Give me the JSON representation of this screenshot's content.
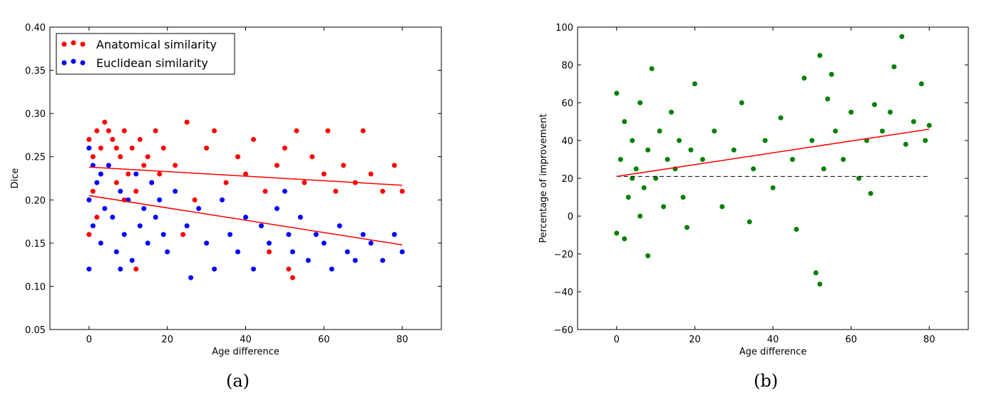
{
  "chart_data": [
    {
      "type": "scatter",
      "panel_label": "(a)",
      "xlabel": "Age difference",
      "ylabel": "Dice",
      "xlim": [
        -10,
        90
      ],
      "ylim": [
        0.05,
        0.4
      ],
      "xticks": [
        0,
        20,
        40,
        60,
        80
      ],
      "yticks": [
        "0.05",
        "0.10",
        "0.15",
        "0.20",
        "0.25",
        "0.30",
        "0.35",
        "0.40"
      ],
      "legend": {
        "placement": "top-left"
      },
      "series": [
        {
          "name": "Anatomical similarity",
          "color": "#ff0000",
          "trend": [
            [
              0,
              0.238
            ],
            [
              80,
              0.217
            ]
          ],
          "points": [
            [
              0,
              0.27
            ],
            [
              1,
              0.25
            ],
            [
              2,
              0.28
            ],
            [
              3,
              0.26
            ],
            [
              4,
              0.29
            ],
            [
              5,
              0.24
            ],
            [
              6,
              0.27
            ],
            [
              7,
              0.22
            ],
            [
              8,
              0.25
            ],
            [
              9,
              0.28
            ],
            [
              10,
              0.23
            ],
            [
              11,
              0.26
            ],
            [
              12,
              0.21
            ],
            [
              13,
              0.27
            ],
            [
              14,
              0.24
            ],
            [
              15,
              0.25
            ],
            [
              16,
              0.22
            ],
            [
              17,
              0.28
            ],
            [
              18,
              0.23
            ],
            [
              19,
              0.26
            ],
            [
              1,
              0.21
            ],
            [
              3,
              0.23
            ],
            [
              5,
              0.28
            ],
            [
              7,
              0.26
            ],
            [
              9,
              0.2
            ],
            [
              0,
              0.16
            ],
            [
              2,
              0.18
            ],
            [
              12,
              0.12
            ],
            [
              22,
              0.24
            ],
            [
              25,
              0.29
            ],
            [
              27,
              0.2
            ],
            [
              30,
              0.26
            ],
            [
              32,
              0.28
            ],
            [
              35,
              0.22
            ],
            [
              38,
              0.25
            ],
            [
              40,
              0.23
            ],
            [
              42,
              0.27
            ],
            [
              45,
              0.21
            ],
            [
              48,
              0.24
            ],
            [
              50,
              0.26
            ],
            [
              51,
              0.12
            ],
            [
              52,
              0.11
            ],
            [
              53,
              0.28
            ],
            [
              55,
              0.22
            ],
            [
              57,
              0.25
            ],
            [
              60,
              0.23
            ],
            [
              61,
              0.28
            ],
            [
              63,
              0.21
            ],
            [
              65,
              0.24
            ],
            [
              68,
              0.22
            ],
            [
              70,
              0.28
            ],
            [
              72,
              0.23
            ],
            [
              75,
              0.21
            ],
            [
              78,
              0.24
            ],
            [
              80,
              0.21
            ],
            [
              46,
              0.14
            ],
            [
              24,
              0.16
            ]
          ]
        },
        {
          "name": "Euclidean similarity",
          "color": "#0000ff",
          "trend": [
            [
              0,
              0.205
            ],
            [
              80,
              0.148
            ]
          ],
          "points": [
            [
              0,
              0.2
            ],
            [
              1,
              0.17
            ],
            [
              2,
              0.22
            ],
            [
              3,
              0.15
            ],
            [
              4,
              0.19
            ],
            [
              5,
              0.24
            ],
            [
              6,
              0.18
            ],
            [
              7,
              0.14
            ],
            [
              8,
              0.21
            ],
            [
              9,
              0.16
            ],
            [
              10,
              0.2
            ],
            [
              11,
              0.13
            ],
            [
              12,
              0.23
            ],
            [
              13,
              0.17
            ],
            [
              14,
              0.19
            ],
            [
              15,
              0.15
            ],
            [
              16,
              0.22
            ],
            [
              17,
              0.18
            ],
            [
              18,
              0.2
            ],
            [
              19,
              0.16
            ],
            [
              0,
              0.26
            ],
            [
              0,
              0.12
            ],
            [
              1,
              0.24
            ],
            [
              3,
              0.23
            ],
            [
              8,
              0.12
            ],
            [
              20,
              0.14
            ],
            [
              22,
              0.21
            ],
            [
              25,
              0.17
            ],
            [
              26,
              0.11
            ],
            [
              28,
              0.19
            ],
            [
              30,
              0.15
            ],
            [
              32,
              0.12
            ],
            [
              34,
              0.2
            ],
            [
              36,
              0.16
            ],
            [
              38,
              0.14
            ],
            [
              40,
              0.18
            ],
            [
              42,
              0.12
            ],
            [
              44,
              0.17
            ],
            [
              46,
              0.15
            ],
            [
              48,
              0.19
            ],
            [
              50,
              0.21
            ],
            [
              51,
              0.16
            ],
            [
              52,
              0.14
            ],
            [
              54,
              0.18
            ],
            [
              56,
              0.13
            ],
            [
              58,
              0.16
            ],
            [
              60,
              0.15
            ],
            [
              62,
              0.12
            ],
            [
              64,
              0.17
            ],
            [
              66,
              0.14
            ],
            [
              68,
              0.13
            ],
            [
              70,
              0.16
            ],
            [
              72,
              0.15
            ],
            [
              75,
              0.13
            ],
            [
              78,
              0.16
            ],
            [
              80,
              0.14
            ]
          ]
        }
      ]
    },
    {
      "type": "scatter",
      "panel_label": "(b)",
      "xlabel": "Age difference",
      "ylabel": "Percentage of improvement",
      "xlim": [
        -10,
        90
      ],
      "ylim": [
        -60,
        100
      ],
      "xticks": [
        0,
        20,
        40,
        60,
        80
      ],
      "yticks": [
        "−60",
        "−40",
        "−20",
        "0",
        "20",
        "40",
        "60",
        "80",
        "100"
      ],
      "series": [
        {
          "color": "#008000",
          "trend": [
            [
              0,
              21
            ],
            [
              80,
              46
            ]
          ],
          "reference_line": {
            "y": 21,
            "x": [
              0,
              80
            ],
            "style": "dashed",
            "color": "#000000"
          },
          "points": [
            [
              0,
              65
            ],
            [
              0,
              -9
            ],
            [
              1,
              30
            ],
            [
              2,
              50
            ],
            [
              3,
              10
            ],
            [
              4,
              40
            ],
            [
              5,
              25
            ],
            [
              6,
              60
            ],
            [
              7,
              15
            ],
            [
              8,
              35
            ],
            [
              8,
              -21
            ],
            [
              9,
              78
            ],
            [
              10,
              20
            ],
            [
              11,
              45
            ],
            [
              12,
              5
            ],
            [
              13,
              30
            ],
            [
              14,
              55
            ],
            [
              15,
              25
            ],
            [
              16,
              40
            ],
            [
              17,
              10
            ],
            [
              18,
              -6
            ],
            [
              19,
              35
            ],
            [
              20,
              70
            ],
            [
              2,
              -12
            ],
            [
              4,
              20
            ],
            [
              6,
              0
            ],
            [
              22,
              30
            ],
            [
              25,
              45
            ],
            [
              27,
              5
            ],
            [
              30,
              35
            ],
            [
              32,
              60
            ],
            [
              34,
              -3
            ],
            [
              35,
              25
            ],
            [
              38,
              40
            ],
            [
              40,
              15
            ],
            [
              42,
              52
            ],
            [
              45,
              30
            ],
            [
              46,
              -7
            ],
            [
              48,
              73
            ],
            [
              50,
              40
            ],
            [
              51,
              -30
            ],
            [
              52,
              -36
            ],
            [
              52,
              85
            ],
            [
              53,
              25
            ],
            [
              54,
              62
            ],
            [
              55,
              75
            ],
            [
              56,
              45
            ],
            [
              58,
              30
            ],
            [
              60,
              55
            ],
            [
              62,
              20
            ],
            [
              64,
              40
            ],
            [
              65,
              12
            ],
            [
              66,
              59
            ],
            [
              68,
              45
            ],
            [
              70,
              55
            ],
            [
              71,
              79
            ],
            [
              73,
              95
            ],
            [
              74,
              38
            ],
            [
              76,
              50
            ],
            [
              78,
              70
            ],
            [
              80,
              48
            ],
            [
              79,
              40
            ]
          ]
        }
      ]
    }
  ]
}
